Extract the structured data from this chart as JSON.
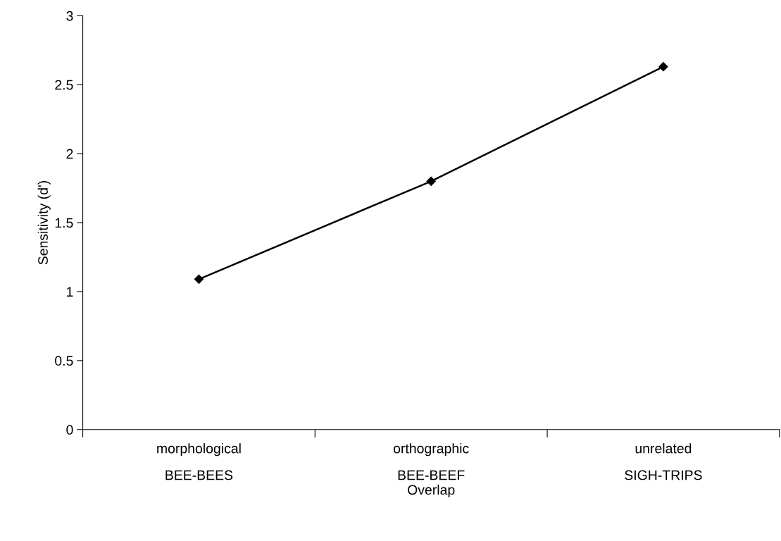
{
  "chart_data": {
    "type": "line",
    "xlabel": "Overlap",
    "ylabel": "Sensitivity (d')",
    "categories": [
      "morphological\nBEE-BEES",
      "orthographic\nBEE-BEEF",
      "unrelated\nSIGH-TRIPS"
    ],
    "series": [
      {
        "color": "#000000",
        "values": [
          1.09,
          1.8,
          2.63
        ]
      }
    ],
    "ylim": [
      0,
      3
    ],
    "yticks": [
      0,
      0.5,
      1,
      1.5,
      2,
      2.5,
      3
    ],
    "marker": "diamond",
    "line_style": "solid",
    "grid": false,
    "legend": false
  }
}
